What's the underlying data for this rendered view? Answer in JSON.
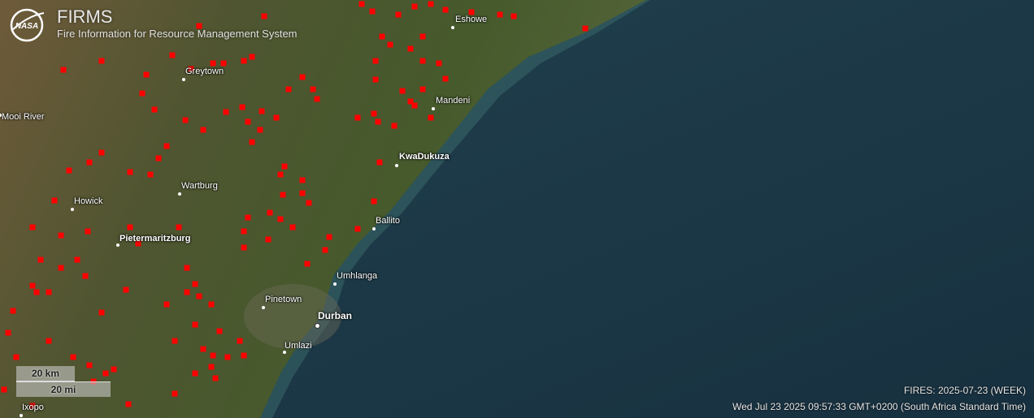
{
  "header": {
    "title": "FIRMS",
    "subtitle": "Fire Information for Resource Management System",
    "logo": "NASA"
  },
  "cities": [
    {
      "name": "Eshowe"
    },
    {
      "name": "Greytown"
    },
    {
      "name": "Mandeni"
    },
    {
      "name": "Mooi River"
    },
    {
      "name": "KwaDukuza"
    },
    {
      "name": "Wartburg"
    },
    {
      "name": "Howick"
    },
    {
      "name": "Ballito"
    },
    {
      "name": "Pietermaritzburg"
    },
    {
      "name": "Umhlanga"
    },
    {
      "name": "Pinetown"
    },
    {
      "name": "Durban"
    },
    {
      "name": "Umlazi"
    },
    {
      "name": "Ixopo"
    }
  ],
  "scale": {
    "km": "20 km",
    "mi": "20 mi"
  },
  "status": {
    "fires": "FIRES: 2025-07-23 (WEEK)",
    "time": "Wed Jul 23 2025 09:57:33 GMT+0200 (South Africa Standard Time)"
  },
  "colors": {
    "fire": "#ff0000",
    "ocean": "#1c3a4c",
    "land": "#4f5a30"
  }
}
